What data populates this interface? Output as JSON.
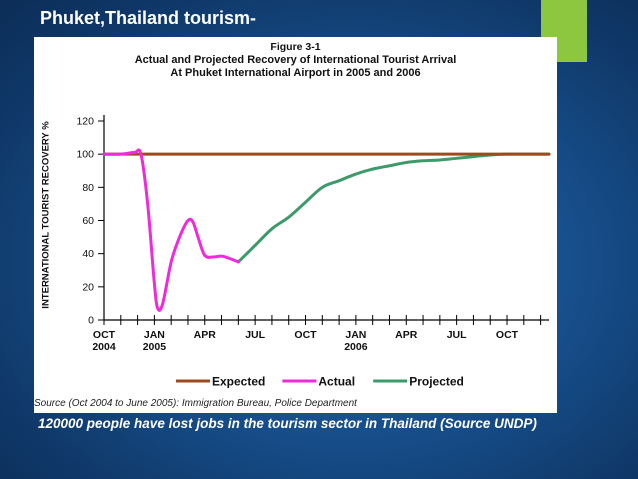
{
  "slide": {
    "title": "Phuket,Thailand tourism-",
    "note": "120000 people have lost jobs in the tourism sector in Thailand (Source UNDP)"
  },
  "colors": {
    "background": "#174f8c",
    "accent": "#8dc63f",
    "expected": "#9c4a1e",
    "actual": "#ee2bd8",
    "projected": "#3d9a6a"
  },
  "chart_data": {
    "type": "line",
    "figure_label": "Figure 3-1",
    "title_line1": "Actual and Projected Recovery of International Tourist Arrival",
    "title_line2": "At Phuket International Airport in 2005 and 2006",
    "ylabel": "INTERNATIONAL TOURIST RECOVERY %",
    "xlabel": "",
    "ylim": [
      0,
      120
    ],
    "yticks": [
      0,
      20,
      40,
      60,
      80,
      100,
      120
    ],
    "xlim": [
      0,
      26.5
    ],
    "xticks": [
      {
        "x": 0,
        "month": "OCT",
        "year": "2004"
      },
      {
        "x": 3,
        "month": "JAN",
        "year": "2005"
      },
      {
        "x": 6,
        "month": "APR",
        "year": ""
      },
      {
        "x": 9,
        "month": "JUL",
        "year": ""
      },
      {
        "x": 12,
        "month": "OCT",
        "year": ""
      },
      {
        "x": 15,
        "month": "JAN",
        "year": "2006"
      },
      {
        "x": 18,
        "month": "APR",
        "year": ""
      },
      {
        "x": 21,
        "month": "JUL",
        "year": ""
      },
      {
        "x": 24,
        "month": "OCT",
        "year": ""
      }
    ],
    "series": [
      {
        "name": "Expected",
        "color": "#9c4a1e",
        "points": [
          [
            0,
            100
          ],
          [
            26.5,
            100
          ]
        ]
      },
      {
        "name": "Actual",
        "color": "#ee2bd8",
        "points": [
          [
            0,
            100
          ],
          [
            1,
            100
          ],
          [
            1.8,
            101
          ],
          [
            2.2,
            100
          ],
          [
            2.6,
            70
          ],
          [
            3,
            22
          ],
          [
            3.2,
            7
          ],
          [
            3.5,
            10
          ],
          [
            4,
            35
          ],
          [
            4.5,
            50
          ],
          [
            5,
            60
          ],
          [
            5.3,
            59
          ],
          [
            5.6,
            50
          ],
          [
            6,
            39
          ],
          [
            6.5,
            38
          ],
          [
            7,
            38.5
          ],
          [
            7.5,
            37
          ],
          [
            8,
            35
          ]
        ]
      },
      {
        "name": "Projected",
        "color": "#3d9a6a",
        "points": [
          [
            8,
            35
          ],
          [
            9,
            45
          ],
          [
            10,
            55
          ],
          [
            11,
            62
          ],
          [
            12,
            71
          ],
          [
            13,
            80
          ],
          [
            14,
            84
          ],
          [
            15,
            88
          ],
          [
            16,
            91
          ],
          [
            17,
            93
          ],
          [
            18,
            95
          ],
          [
            19,
            96
          ],
          [
            20,
            96.5
          ],
          [
            21,
            97.5
          ],
          [
            22,
            98.5
          ],
          [
            23,
            99.5
          ],
          [
            24,
            100
          ],
          [
            25,
            100
          ],
          [
            26.5,
            100
          ]
        ]
      }
    ],
    "legend": [
      "Expected",
      "Actual",
      "Projected"
    ],
    "legend_position": "bottom",
    "source": "Source (Oct 2004 to June 2005): Immigration Bureau, Police Department"
  }
}
